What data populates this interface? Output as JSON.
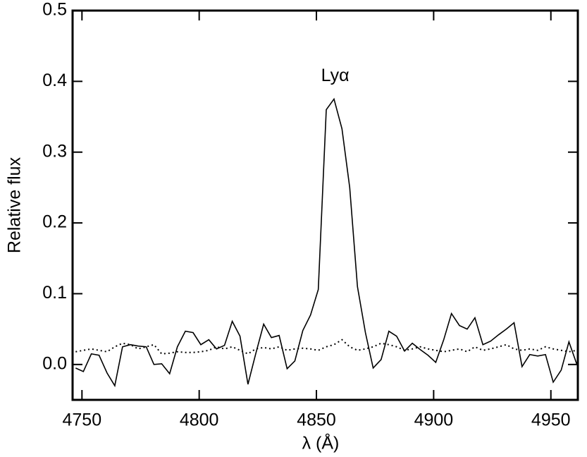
{
  "chart_data": {
    "type": "line",
    "xlabel": "λ (Å)",
    "ylabel": "Relative flux",
    "annotations": [
      {
        "text": "Lyα",
        "x": 4858,
        "y": 0.407
      }
    ],
    "x": [
      4747.3,
      4750.6,
      4754.0,
      4757.3,
      4760.7,
      4764.0,
      4767.3,
      4770.7,
      4774.0,
      4777.4,
      4780.7,
      4784.0,
      4787.4,
      4790.7,
      4794.1,
      4797.4,
      4800.7,
      4804.1,
      4807.4,
      4810.8,
      4814.1,
      4817.4,
      4820.8,
      4824.1,
      4827.5,
      4830.8,
      4834.1,
      4837.5,
      4840.8,
      4844.2,
      4847.5,
      4850.8,
      4854.2,
      4857.5,
      4860.9,
      4864.2,
      4867.5,
      4870.9,
      4874.2,
      4877.6,
      4880.9,
      4884.2,
      4887.6,
      4890.9,
      4894.3,
      4897.6,
      4900.9,
      4904.3,
      4907.6,
      4911.0,
      4914.3,
      4917.6,
      4921.0,
      4924.3,
      4927.7,
      4931.0,
      4934.3,
      4937.7,
      4941.0,
      4944.4,
      4947.7,
      4951.0,
      4954.4,
      4957.7,
      4961.1
    ],
    "series": [
      {
        "color": "#000000",
        "style": "solid",
        "values": [
          -0.005,
          -0.01,
          0.015,
          0.013,
          -0.012,
          -0.03,
          0.025,
          0.028,
          0.026,
          0.025,
          0.0,
          0.001,
          -0.013,
          0.025,
          0.047,
          0.045,
          0.028,
          0.035,
          0.022,
          0.027,
          0.061,
          0.04,
          -0.028,
          0.015,
          0.057,
          0.038,
          0.041,
          -0.006,
          0.005,
          0.048,
          0.07,
          0.106,
          0.36,
          0.375,
          0.333,
          0.25,
          0.11,
          0.045,
          -0.005,
          0.007,
          0.047,
          0.04,
          0.019,
          0.03,
          0.021,
          0.013,
          0.003,
          0.035,
          0.072,
          0.055,
          0.05,
          0.066,
          0.028,
          0.033,
          0.042,
          0.05,
          0.059,
          -0.003,
          0.014,
          0.012,
          0.014,
          -0.025,
          -0.008,
          0.032,
          0.0
        ]
      },
      {
        "color": "#000000",
        "style": "dotted",
        "values": [
          0.018,
          0.02,
          0.022,
          0.02,
          0.018,
          0.025,
          0.03,
          0.028,
          0.022,
          0.025,
          0.028,
          0.015,
          0.016,
          0.018,
          0.017,
          0.017,
          0.018,
          0.02,
          0.025,
          0.022,
          0.025,
          0.02,
          0.015,
          0.022,
          0.024,
          0.022,
          0.025,
          0.02,
          0.022,
          0.023,
          0.022,
          0.02,
          0.025,
          0.028,
          0.035,
          0.025,
          0.02,
          0.022,
          0.025,
          0.03,
          0.028,
          0.025,
          0.02,
          0.022,
          0.025,
          0.022,
          0.02,
          0.018,
          0.02,
          0.022,
          0.018,
          0.025,
          0.02,
          0.022,
          0.025,
          0.028,
          0.022,
          0.02,
          0.022,
          0.02,
          0.025,
          0.022,
          0.02,
          0.018,
          0.02
        ]
      }
    ],
    "xlim": [
      4746,
      4961.5
    ],
    "xticks": [
      4750,
      4800,
      4850,
      4900,
      4950
    ],
    "ylim": [
      -0.05,
      0.5
    ],
    "yticks": [
      {
        "value": 0,
        "label": "0.0"
      },
      0.1,
      0.2,
      0.3,
      0.4,
      0.5
    ],
    "grid": false
  }
}
